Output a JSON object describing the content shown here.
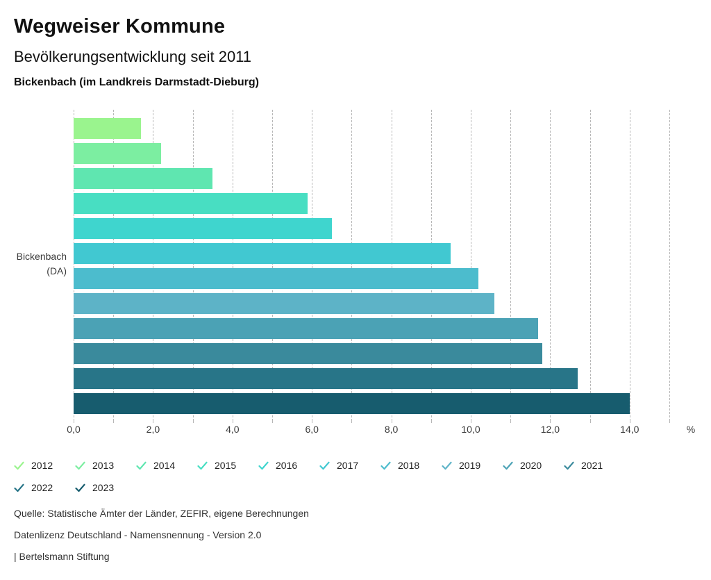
{
  "header": {
    "title": "Wegweiser Kommune",
    "subtitle": "Bevölkerungsentwicklung seit 2011",
    "region": "Bickenbach (im Landkreis Darmstadt-Dieburg)"
  },
  "chart_data": {
    "type": "bar",
    "orientation": "horizontal",
    "title": "Bevölkerungsentwicklung seit 2011",
    "group_label_lines": [
      "Bickenbach",
      "(DA)"
    ],
    "value_unit": "%",
    "series": [
      {
        "name": "2012",
        "value": 1.7,
        "color": "#9af48e"
      },
      {
        "name": "2013",
        "value": 2.2,
        "color": "#7ceea1"
      },
      {
        "name": "2014",
        "value": 3.5,
        "color": "#5fe6b0"
      },
      {
        "name": "2015",
        "value": 5.9,
        "color": "#48dec2"
      },
      {
        "name": "2016",
        "value": 6.5,
        "color": "#3fd5ce"
      },
      {
        "name": "2017",
        "value": 9.5,
        "color": "#41c8d1"
      },
      {
        "name": "2018",
        "value": 10.2,
        "color": "#4cbccd"
      },
      {
        "name": "2019",
        "value": 10.6,
        "color": "#5db3c7"
      },
      {
        "name": "2020",
        "value": 11.7,
        "color": "#4ba2b5"
      },
      {
        "name": "2021",
        "value": 11.8,
        "color": "#3a8a9c"
      },
      {
        "name": "2022",
        "value": 12.7,
        "color": "#287588"
      },
      {
        "name": "2023",
        "value": 14.0,
        "color": "#175c6e"
      }
    ],
    "xaxis": {
      "min": 0,
      "max": 15,
      "grid_step": 1,
      "unit": "%",
      "ticks": [
        {
          "pos": 0,
          "label": "0,0"
        },
        {
          "pos": 2,
          "label": "2,0"
        },
        {
          "pos": 4,
          "label": "4,0"
        },
        {
          "pos": 6,
          "label": "6,0"
        },
        {
          "pos": 8,
          "label": "8,0"
        },
        {
          "pos": 10,
          "label": "10,0"
        },
        {
          "pos": 12,
          "label": "12,0"
        },
        {
          "pos": 14,
          "label": "14,0"
        }
      ]
    },
    "grid": "dashed-vertical",
    "legend_position": "bottom"
  },
  "footer": {
    "source": "Quelle: Statistische Ämter der Länder, ZEFIR, eigene Berechnungen",
    "license": "Datenlizenz Deutschland - Namensnennung - Version 2.0",
    "brand": "| Bertelsmann Stiftung"
  }
}
